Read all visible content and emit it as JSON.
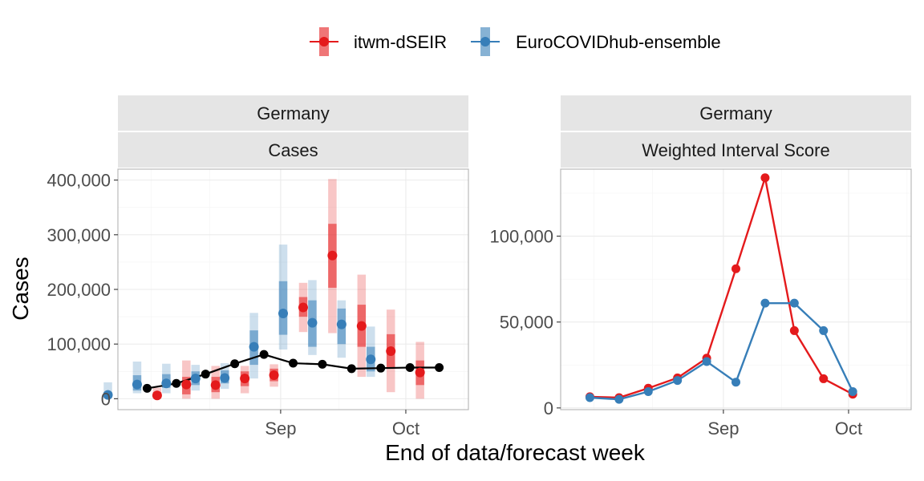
{
  "legend": {
    "items": [
      {
        "label": "itwm-dSEIR",
        "color": "#e41a1c"
      },
      {
        "label": "EuroCOVIDhub-ensemble",
        "color": "#377eb8"
      }
    ]
  },
  "axes": {
    "x_title": "End of data/forecast week",
    "y_title": "Cases"
  },
  "panels": {
    "left": {
      "strip_top": "Germany",
      "strip_bottom": "Cases"
    },
    "right": {
      "strip_top": "Germany",
      "strip_bottom": "Weighted Interval Score"
    }
  },
  "chart_data": [
    {
      "type": "line",
      "panel": "Cases",
      "title": "",
      "xlabel": "End of data/forecast week",
      "ylabel": "Cases",
      "x_ticks": [
        "Sep",
        "Oct"
      ],
      "y_ticks": [
        "0",
        "100,000",
        "200,000",
        "300,000",
        "400,000"
      ],
      "y_tick_values": [
        0,
        100000,
        200000,
        300000,
        400000
      ],
      "ylim": [
        -20000,
        420000
      ],
      "xlim": [
        "2021-07-24",
        "2021-10-16"
      ],
      "grid": true,
      "dates": [
        "2021-07-31",
        "2021-08-07",
        "2021-08-14",
        "2021-08-21",
        "2021-08-28",
        "2021-09-04",
        "2021-09-11",
        "2021-09-18",
        "2021-09-25",
        "2021-10-02",
        "2021-10-09"
      ],
      "observed": [
        19000,
        28000,
        45000,
        64000,
        81000,
        65000,
        63000,
        55000,
        56000,
        57000,
        57000
      ],
      "forecasts": [
        {
          "model": "itwm-dSEIR",
          "color": "#e41a1c",
          "median": [
            6000,
            26000,
            25000,
            37000,
            43000,
            167000,
            262000,
            133000,
            87000,
            48000
          ],
          "q50": [
            [
              2000,
              12000
            ],
            [
              8000,
              40000
            ],
            [
              12000,
              40000
            ],
            [
              23000,
              50000
            ],
            [
              32000,
              55000
            ],
            [
              150000,
              186000
            ],
            [
              203000,
              320000
            ],
            [
              95000,
              172000
            ],
            [
              55000,
              118000
            ],
            [
              25000,
              70000
            ]
          ],
          "q90": [
            [
              0,
              20000
            ],
            [
              0,
              70000
            ],
            [
              0,
              60000
            ],
            [
              10000,
              60000
            ],
            [
              22000,
              63000
            ],
            [
              122000,
              212000
            ],
            [
              120000,
              402000
            ],
            [
              40000,
              227000
            ],
            [
              12000,
              163000
            ],
            [
              0,
              104000
            ]
          ],
          "targets": [
            "2021-07-31",
            "2021-08-07",
            "2021-08-14",
            "2021-08-21",
            "2021-08-28",
            "2021-09-04",
            "2021-09-11",
            "2021-09-18",
            "2021-09-25",
            "2021-10-02"
          ]
        },
        {
          "model": "EuroCOVIDhub-ensemble",
          "color": "#377eb8",
          "median": [
            7000,
            26000,
            28000,
            37000,
            38000,
            95000,
            156000,
            139000,
            136000,
            72000
          ],
          "q50": [
            [
              3000,
              12000
            ],
            [
              15000,
              43000
            ],
            [
              20000,
              45000
            ],
            [
              25000,
              50000
            ],
            [
              28000,
              52000
            ],
            [
              62000,
              125000
            ],
            [
              117000,
              215000
            ],
            [
              95000,
              180000
            ],
            [
              100000,
              165000
            ],
            [
              50000,
              95000
            ]
          ],
          "q90": [
            [
              0,
              30000
            ],
            [
              10000,
              68000
            ],
            [
              10000,
              64000
            ],
            [
              15000,
              62000
            ],
            [
              18000,
              65000
            ],
            [
              37000,
              157000
            ],
            [
              90000,
              282000
            ],
            [
              80000,
              217000
            ],
            [
              75000,
              180000
            ],
            [
              40000,
              132000
            ]
          ],
          "targets": [
            "2021-07-24",
            "2021-07-31",
            "2021-08-07",
            "2021-08-14",
            "2021-08-21",
            "2021-08-28",
            "2021-09-04",
            "2021-09-11",
            "2021-09-18",
            "2021-09-25"
          ]
        }
      ]
    },
    {
      "type": "line",
      "panel": "Weighted Interval Score",
      "title": "",
      "xlabel": "End of data/forecast week",
      "ylabel": "",
      "x_ticks": [
        "Sep",
        "Oct"
      ],
      "y_ticks": [
        "0",
        "50,000",
        "100,000"
      ],
      "y_tick_values": [
        0,
        50000,
        100000
      ],
      "ylim": [
        -1000,
        139000
      ],
      "xlim": [
        "2021-07-24",
        "2021-10-16"
      ],
      "grid": true,
      "dates": [
        "2021-07-31",
        "2021-08-07",
        "2021-08-14",
        "2021-08-21",
        "2021-08-28",
        "2021-09-04",
        "2021-09-11",
        "2021-09-18",
        "2021-09-25",
        "2021-10-02",
        "2021-10-09"
      ],
      "series": [
        {
          "name": "itwm-dSEIR",
          "color": "#e41a1c",
          "values": [
            6500,
            6000,
            11500,
            17500,
            29000,
            81000,
            134000,
            45000,
            17000,
            8000,
            null
          ]
        },
        {
          "name": "EuroCOVIDhub-ensemble",
          "color": "#377eb8",
          "values": [
            6000,
            5000,
            9500,
            16000,
            27000,
            15000,
            61000,
            61000,
            45000,
            9500,
            null
          ]
        }
      ]
    }
  ]
}
